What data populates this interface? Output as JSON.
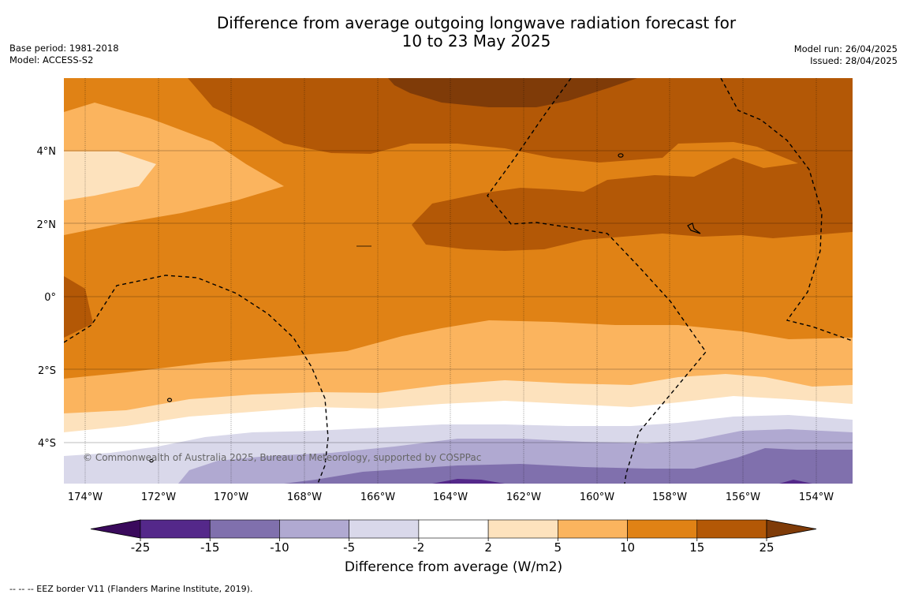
{
  "header": {
    "title_line1": "Difference from average outgoing longwave radiation forecast for",
    "title_line2": "10 to 23 May 2025",
    "base_period": "Base period: 1981-2018",
    "model": "Model: ACCESS-S2",
    "model_run": "Model run: 26/04/2025",
    "issued": "Issued: 28/04/2025"
  },
  "map": {
    "lat_labels": [
      "4°N",
      "2°N",
      "0°",
      "2°S",
      "4°S"
    ],
    "lon_labels": [
      "174°W",
      "172°W",
      "170°W",
      "168°W",
      "166°W",
      "164°W",
      "162°W",
      "160°W",
      "158°W",
      "156°W",
      "154°W"
    ],
    "copyright": "© Commonwealth of Australia 2025, Bureau of Meteorology, supported by COSPPac"
  },
  "colorbar": {
    "ticks": [
      "-25",
      "-15",
      "-10",
      "-5",
      "-2",
      "2",
      "5",
      "10",
      "15",
      "25"
    ],
    "colors": [
      "#3a0a5c",
      "#54288a",
      "#8070ad",
      "#b0a9d1",
      "#d9d8ea",
      "#ffffff",
      "#fde2bd",
      "#fbb45e",
      "#e08215",
      "#b35806",
      "#7f3b08"
    ],
    "label": "Difference from average (W/m2)"
  },
  "legend": {
    "eez_note": "--  --  -- EEZ border V11 (Flanders Marine Institute, 2019)."
  }
}
